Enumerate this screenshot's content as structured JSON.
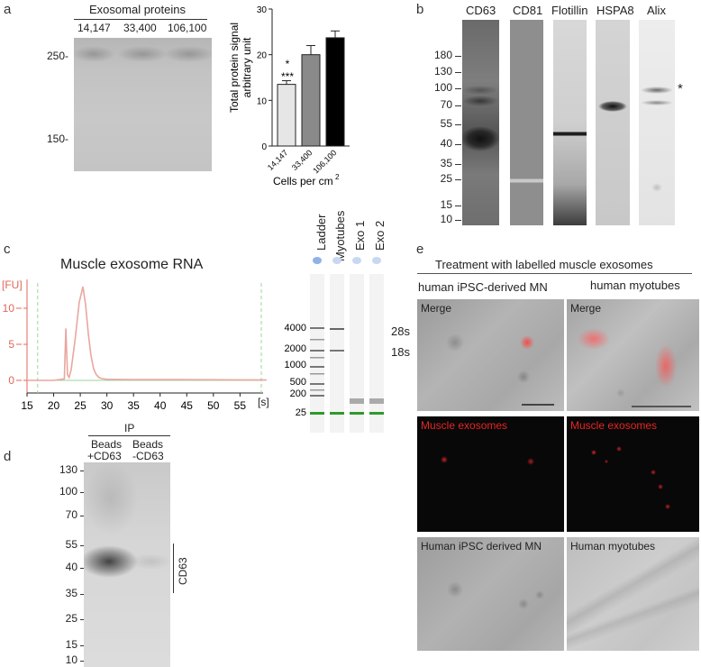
{
  "panels": {
    "a": {
      "letter": "a",
      "gel_title": "Exosomal proteins",
      "lanes": [
        "14,147",
        "33,400",
        "106,100"
      ],
      "mw_markers": [
        "250-",
        "150-"
      ],
      "bar_ylabel_line1": "Total protein signal",
      "bar_ylabel_line2": "arbitrary unit",
      "bar_xlabel": "Cells per cm",
      "bar_xlabel_sup": "2",
      "sig1": "*",
      "sig2": "***"
    },
    "b": {
      "letter": "b",
      "lanes": [
        "CD63",
        "CD81",
        "Flotillin",
        "HSPA8",
        "Alix"
      ],
      "mw_markers": [
        "180",
        "130",
        "100",
        "70",
        "55",
        "40",
        "35",
        "25",
        "15",
        "10"
      ],
      "asterisk": "*"
    },
    "c": {
      "letter": "c",
      "title": "Muscle exosome RNA",
      "ylabel": "[FU]",
      "xunit": "[s]",
      "gel_lanes": [
        "Ladder",
        "Myotubes",
        "Exo 1",
        "Exo 2"
      ],
      "gel_markers": [
        "4000",
        "2000",
        "1000",
        "500",
        "200",
        "25"
      ],
      "rrna_labels": [
        "28s",
        "18s"
      ]
    },
    "d": {
      "letter": "d",
      "ip_label": "IP",
      "lane1_line1": "Beads",
      "lane1_line2": "+CD63",
      "lane2_line1": "Beads",
      "lane2_line2": "-CD63",
      "mw_markers": [
        "130",
        "100",
        "70",
        "55",
        "40",
        "35",
        "25",
        "15",
        "10"
      ],
      "band_label": "CD63"
    },
    "e": {
      "letter": "e",
      "title": "Treatment with labelled muscle exosomes",
      "col1": "human iPSC-derived MN",
      "col2": "human myotubes",
      "row1_left": "Merge",
      "row1_right": "Merge",
      "row2_left": "Muscle exosomes",
      "row2_right": "Muscle exosomes",
      "row3_left": "Human iPSC derived MN",
      "row3_right": "Human myotubes"
    }
  },
  "chart_data": [
    {
      "type": "bar",
      "categories": [
        "14,147",
        "33,400",
        "106,100"
      ],
      "values": [
        13.5,
        20,
        23.7
      ],
      "errors": [
        0.8,
        2.0,
        1.5
      ],
      "colors": [
        "#e6e6e6",
        "#8a8a8a",
        "#000000"
      ],
      "ylabel": "Total protein signal arbitrary unit",
      "xlabel": "Cells per cm2",
      "ylim": [
        0,
        30
      ],
      "yticks": [
        0,
        10,
        20,
        30
      ]
    },
    {
      "type": "line",
      "title": "Muscle exosome RNA",
      "ylabel": "[FU]",
      "xlabel": "[s]",
      "xlim": [
        15,
        60
      ],
      "ylim": [
        -1,
        15
      ],
      "xticks": [
        15,
        20,
        25,
        30,
        35,
        40,
        45,
        50,
        55
      ],
      "yticks": [
        0,
        5,
        10
      ],
      "x": [
        15,
        20,
        22,
        22.3,
        22.6,
        22.9,
        23.3,
        24,
        24.8,
        25.5,
        26,
        26.5,
        27,
        27.5,
        28,
        28.5,
        29,
        30,
        35,
        45,
        60
      ],
      "y": [
        0,
        0,
        0.2,
        7.2,
        0.8,
        0.4,
        1.5,
        5.5,
        10.8,
        13,
        10.5,
        6.5,
        3.5,
        1.6,
        0.8,
        0.4,
        0.25,
        0.15,
        0.1,
        0.1,
        0.05
      ]
    }
  ]
}
